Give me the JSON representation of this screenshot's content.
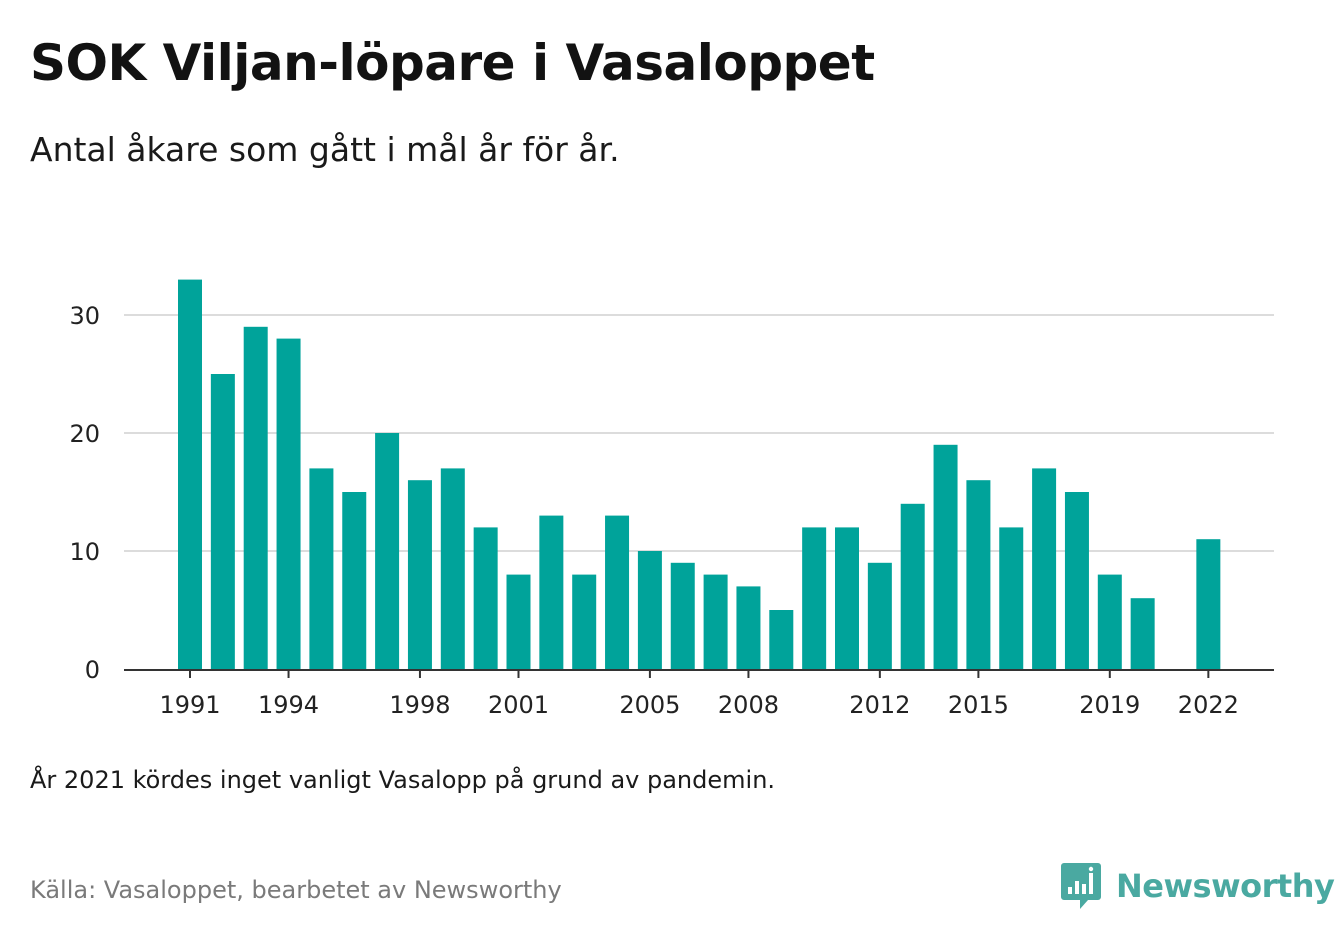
{
  "header": {
    "title": "SOK Viljan-löpare i Vasaloppet",
    "subtitle": "Antal åkare som gått i mål år för år."
  },
  "footer": {
    "note": "År 2021 kördes inget vanligt Vasalopp på grund av pandemin.",
    "source": "Källa: Vasaloppet, bearbetet av Newsworthy",
    "brand": "Newsworthy",
    "brand_color": "#4aa9a1",
    "brand_icon": "bar-chart-speech-bubble-icon"
  },
  "chart_data": {
    "type": "bar",
    "bar_color": "#00a39a",
    "categories": [
      1991,
      1992,
      1993,
      1994,
      1995,
      1996,
      1997,
      1998,
      1999,
      2000,
      2001,
      2002,
      2003,
      2004,
      2005,
      2006,
      2007,
      2008,
      2009,
      2010,
      2011,
      2012,
      2013,
      2014,
      2015,
      2016,
      2017,
      2018,
      2019,
      2020,
      2021,
      2022
    ],
    "values": [
      33,
      25,
      29,
      28,
      17,
      15,
      20,
      16,
      17,
      12,
      8,
      13,
      8,
      13,
      10,
      9,
      8,
      7,
      5,
      12,
      12,
      9,
      14,
      19,
      16,
      12,
      17,
      15,
      8,
      6,
      null,
      11
    ],
    "x_tick_labels": [
      "1991",
      "1994",
      "1998",
      "2001",
      "2005",
      "2008",
      "2012",
      "2015",
      "2019",
      "2022"
    ],
    "y_ticks": [
      0,
      10,
      20,
      30
    ],
    "ylim": [
      0,
      34
    ],
    "grid": true,
    "legend": false
  }
}
